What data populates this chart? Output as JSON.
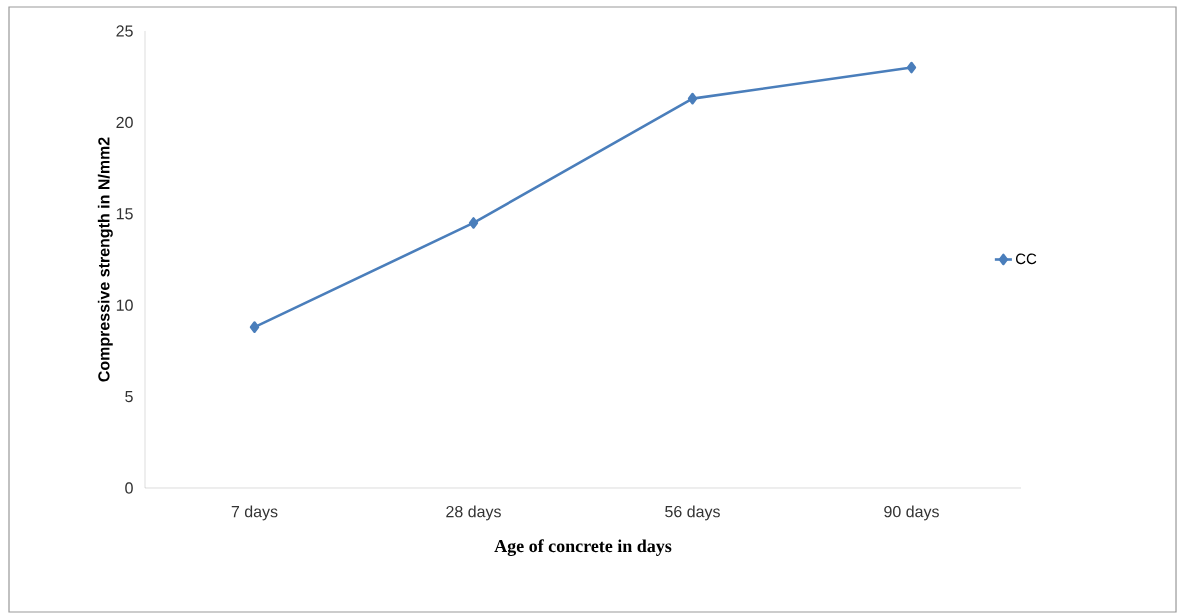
{
  "chart_data": {
    "type": "line",
    "xlabel": "Age of concrete in days",
    "ylabel": "Compressive strength in N/mm2",
    "categories": [
      "7 days",
      "28 days",
      "56 days",
      "90 days"
    ],
    "series": [
      {
        "name": "CC",
        "color": "#4a7ebb",
        "values": [
          8.8,
          14.5,
          21.3,
          23.0
        ]
      }
    ],
    "ylim": [
      0,
      25
    ],
    "yticks": [
      0,
      5,
      10,
      15,
      20,
      25
    ],
    "grid": false,
    "legend": "right",
    "marker": "diamond",
    "line_style": "solid"
  }
}
